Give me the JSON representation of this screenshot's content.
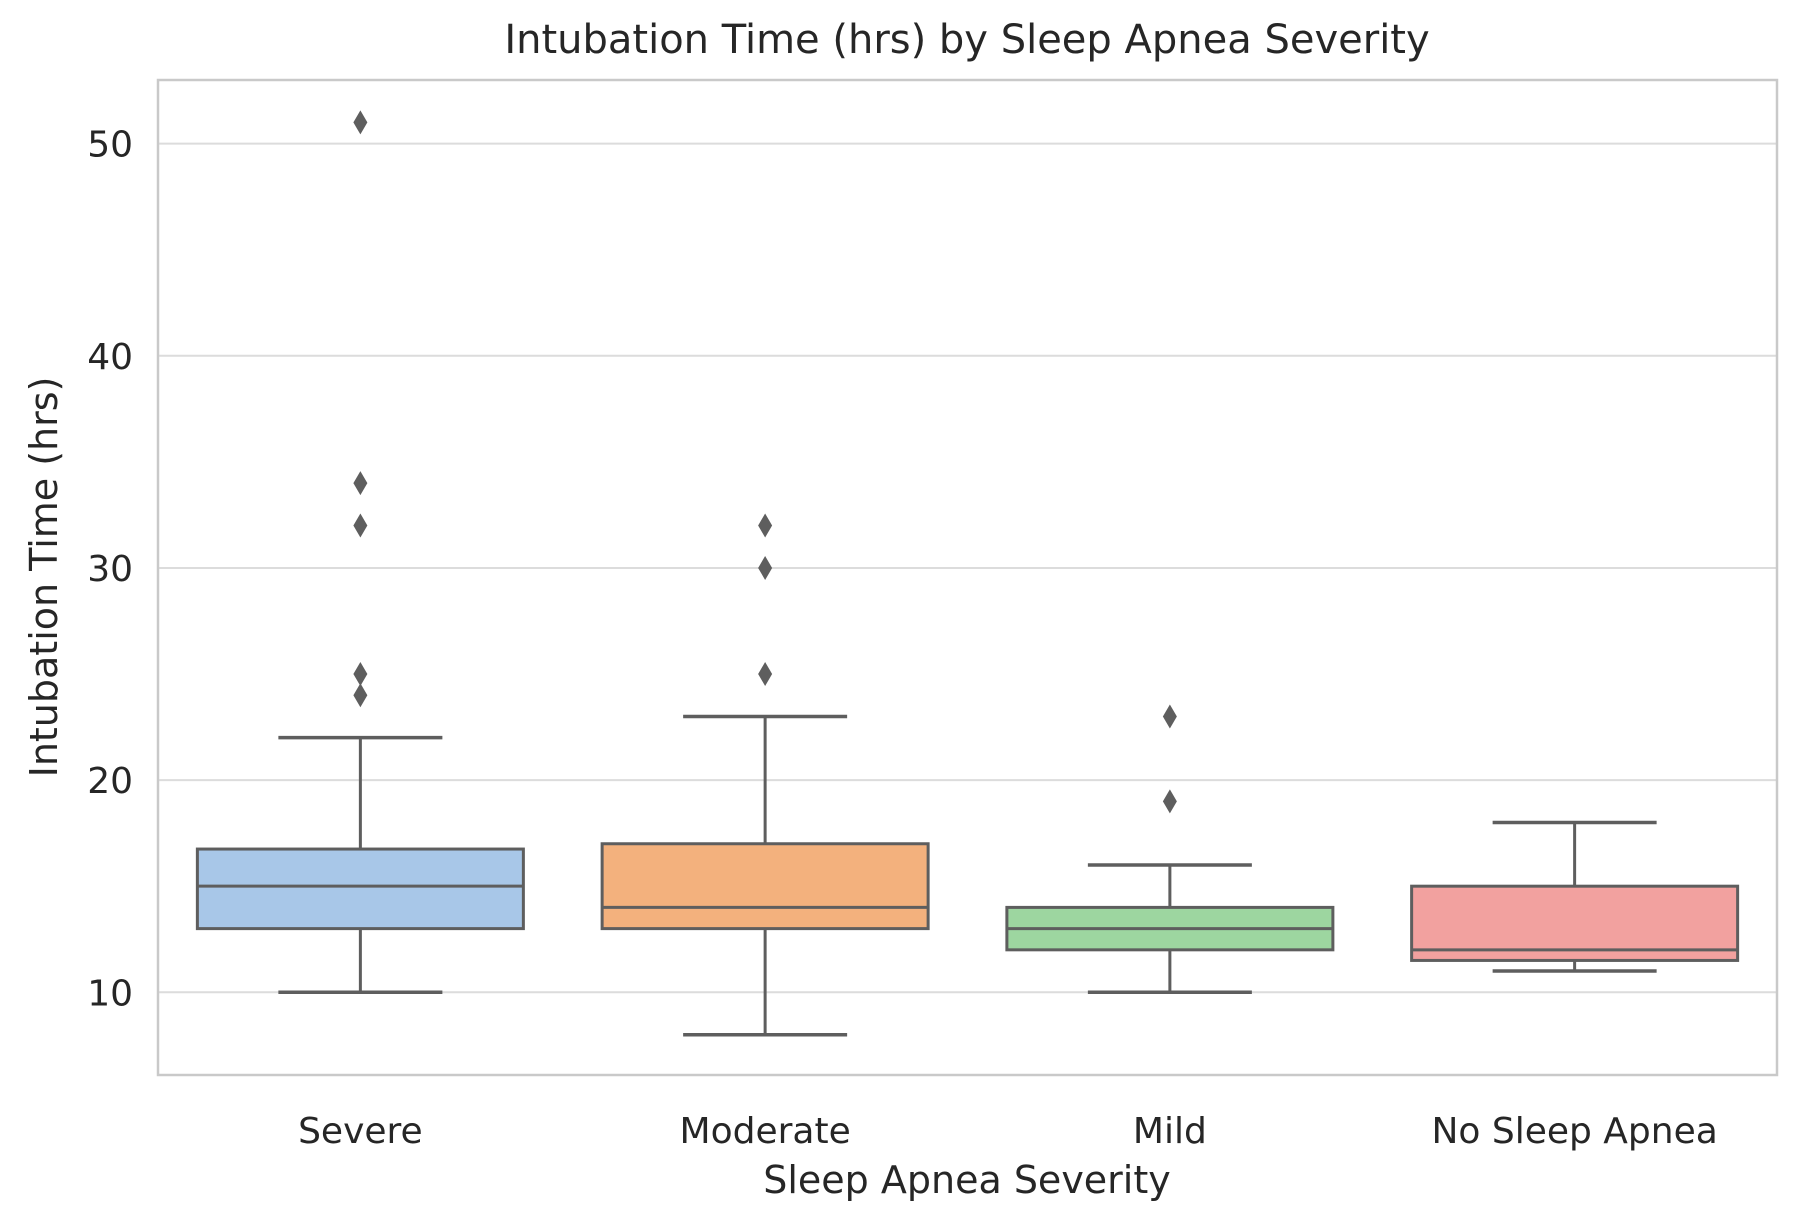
{
  "chart_data": {
    "type": "boxplot",
    "title": "Intubation Time (hrs) by Sleep Apnea Severity",
    "xlabel": "Sleep Apnea Severity",
    "ylabel": "Intubation Time (hrs)",
    "categories": [
      "Severe",
      "Moderate",
      "Mild",
      "No Sleep Apnea"
    ],
    "yticks": [
      10,
      20,
      30,
      40,
      50
    ],
    "ylim": [
      6.1,
      53.0
    ],
    "grid": "horizontal gridlines at each ytick, light gray",
    "legend": null,
    "outlier_marker": "diamond",
    "boxes": [
      {
        "category": "Severe",
        "fill_color": "#a8c7e8",
        "whisker_low": 10,
        "q1": 13,
        "median": 15,
        "q3": 16.75,
        "whisker_high": 22,
        "outliers": [
          24,
          25,
          32,
          34,
          51
        ]
      },
      {
        "category": "Moderate",
        "fill_color": "#f3b17d",
        "whisker_low": 8,
        "q1": 13,
        "median": 14,
        "q3": 17,
        "whisker_high": 23,
        "outliers": [
          25,
          30,
          32
        ]
      },
      {
        "category": "Mild",
        "fill_color": "#9dd6a0",
        "whisker_low": 10,
        "q1": 12,
        "median": 13,
        "q3": 14,
        "whisker_high": 16,
        "outliers": [
          19,
          23
        ]
      },
      {
        "category": "No Sleep Apnea",
        "fill_color": "#f2a19f",
        "whisker_low": 11,
        "q1": 11.5,
        "median": 12,
        "q3": 15,
        "whisker_high": 18,
        "outliers": []
      }
    ],
    "styles": {
      "line_color": "#5e5e5e",
      "grid_color": "#dcdcdc",
      "spine_color": "#c9c9c9",
      "text_color": "#262626",
      "background": "#ffffff"
    }
  }
}
